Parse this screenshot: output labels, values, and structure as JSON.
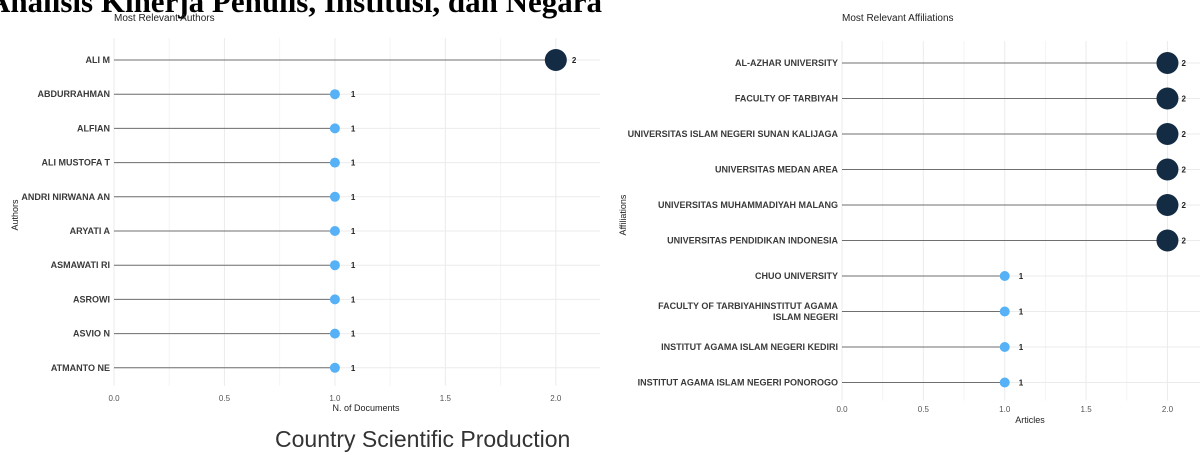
{
  "page": {
    "heading": "Analisis Kinerja Penulis, Institusi, dan Negara",
    "footer_title": "Country Scientific Production"
  },
  "colors": {
    "high": "#132b43",
    "low": "#56b1f7",
    "stem": "#6f6f6f",
    "grid": "#ebebeb"
  },
  "chart_data": [
    {
      "type": "scatter",
      "title": "Most Relevant Authors",
      "xlabel": "N. of Documents",
      "ylabel": "Authors",
      "xlim": [
        0,
        2.2
      ],
      "xticks": [
        "0.0",
        "0.5",
        "1.0",
        "1.5",
        "2.0"
      ],
      "grid": true,
      "categories": [
        "ALI M",
        "ABDURRAHMAN",
        "ALFIAN",
        "ALI MUSTOFA T",
        "ANDRI NIRWANA AN",
        "ARYATI A",
        "ASMAWATI RI",
        "ASROWI",
        "ASVIO N",
        "ATMANTO NE"
      ],
      "values": [
        2,
        1,
        1,
        1,
        1,
        1,
        1,
        1,
        1,
        1
      ],
      "value_labels": [
        "2",
        "1",
        "1",
        "1",
        "1",
        "1",
        "1",
        "1",
        "1",
        "1"
      ]
    },
    {
      "type": "scatter",
      "title": "Most Relevant Affiliations",
      "xlabel": "Articles",
      "ylabel": "Affiliations",
      "xlim": [
        0,
        2.2
      ],
      "xticks": [
        "0.0",
        "0.5",
        "1.0",
        "1.5",
        "2.0"
      ],
      "grid": true,
      "categories": [
        "AL-AZHAR UNIVERSITY",
        "FACULTY OF TARBIYAH",
        "UNIVERSITAS ISLAM NEGERI SUNAN KALIJAGA",
        "UNIVERSITAS MEDAN AREA",
        "UNIVERSITAS MUHAMMADIYAH MALANG",
        "UNIVERSITAS PENDIDIKAN INDONESIA",
        "CHUO UNIVERSITY",
        "FACULTY OF TARBIYAHINSTITUT AGAMA ISLAM NEGERI",
        "INSTITUT AGAMA ISLAM NEGERI KEDIRI",
        "INSTITUT AGAMA ISLAM NEGERI PONOROGO"
      ],
      "values": [
        2,
        2,
        2,
        2,
        2,
        2,
        1,
        1,
        1,
        1
      ],
      "value_labels": [
        "2",
        "2",
        "2",
        "2",
        "2",
        "2",
        "1",
        "1",
        "1",
        "1"
      ]
    }
  ]
}
